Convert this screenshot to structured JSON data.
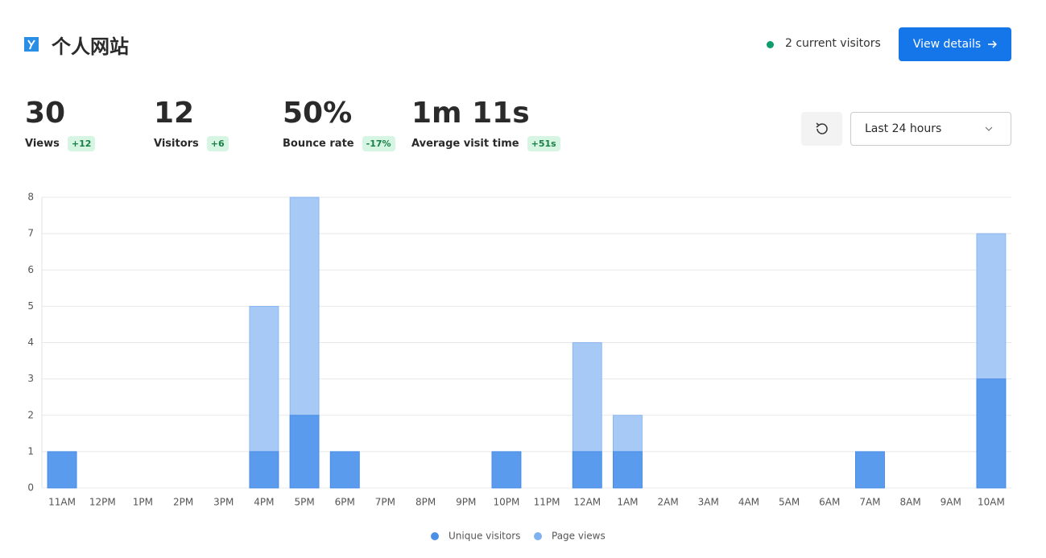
{
  "header": {
    "title": "个人网站",
    "current_visitors": "2 current visitors",
    "button": "View details"
  },
  "metrics": [
    {
      "value": "30",
      "label": "Views",
      "change": "+12"
    },
    {
      "value": "12",
      "label": "Visitors",
      "change": "+6"
    },
    {
      "value": "50%",
      "label": "Bounce rate",
      "change": "-17%"
    },
    {
      "value": "1m 11s",
      "label": "Average visit time",
      "change": "+51s"
    }
  ],
  "controls": {
    "range": "Last 24 hours"
  },
  "chart_data": {
    "type": "overlay-bar",
    "categories": [
      "11AM",
      "12PM",
      "1PM",
      "2PM",
      "3PM",
      "4PM",
      "5PM",
      "6PM",
      "7PM",
      "8PM",
      "9PM",
      "10PM",
      "11PM",
      "12AM",
      "1AM",
      "2AM",
      "3AM",
      "4AM",
      "5AM",
      "6AM",
      "7AM",
      "8AM",
      "9AM",
      "10AM"
    ],
    "series": [
      {
        "name": "Unique visitors",
        "color": "#5a9bed",
        "legend_color": "#4a8fe8",
        "values": [
          1,
          0,
          0,
          0,
          0,
          1,
          2,
          1,
          0,
          0,
          0,
          1,
          0,
          1,
          1,
          0,
          0,
          0,
          0,
          0,
          1,
          0,
          0,
          3
        ]
      },
      {
        "name": "Page views",
        "color": "#a7c9f6",
        "legend_color": "#7fb0ef",
        "values": [
          1,
          0,
          0,
          0,
          0,
          5,
          8,
          1,
          0,
          0,
          0,
          1,
          0,
          4,
          2,
          0,
          0,
          0,
          0,
          0,
          1,
          0,
          0,
          7
        ]
      }
    ],
    "ylim": [
      0,
      8
    ],
    "yticks": [
      0,
      1,
      2,
      3,
      4,
      5,
      6,
      7,
      8
    ],
    "grid": true
  }
}
